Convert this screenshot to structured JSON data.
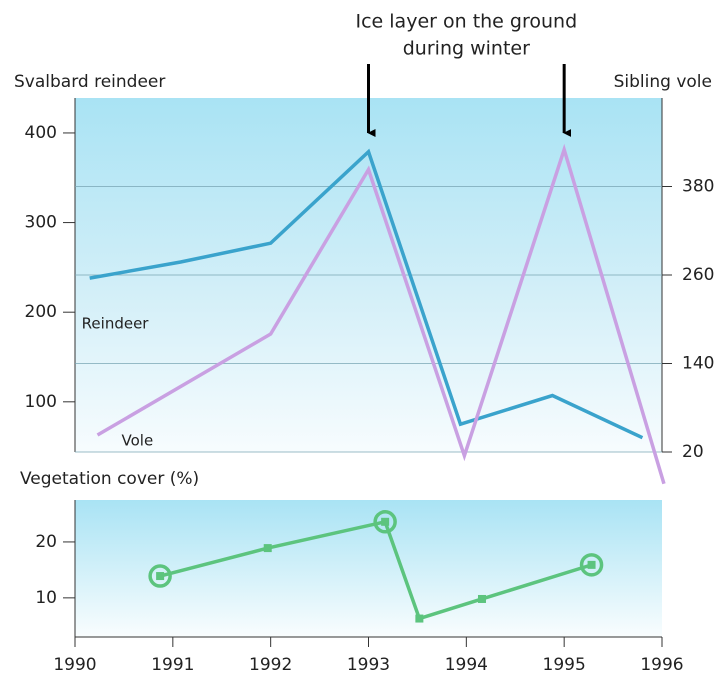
{
  "chart_data": [
    {
      "type": "line",
      "y_label": "Svalbard reindeer",
      "y2_label": "Sibling vole",
      "xlim": [
        1990,
        1996
      ],
      "ylim": [
        44,
        439
      ],
      "yticks": [
        100,
        200,
        300,
        400
      ],
      "y2lim": [
        20,
        500
      ],
      "y2ticks": [
        20,
        140,
        260,
        380
      ],
      "grid": "y2",
      "series": [
        {
          "name": "Reindeer",
          "color": "#3aa3cc",
          "x": [
            1990.15,
            1991.08,
            1992.0,
            1993.0,
            1993.94,
            1994.88,
            1995.8
          ],
          "values": [
            238,
            256,
            277,
            379,
            75,
            107,
            60
          ]
        },
        {
          "name": "Vole",
          "color": "#c9a0e2",
          "axis": "y2",
          "x": [
            1990.23,
            1992.0,
            1993.0,
            1993.98,
            1995.0,
            1996.02
          ],
          "values": [
            43,
            180,
            403,
            15,
            430,
            -23
          ]
        }
      ],
      "annotation": {
        "text_lines": [
          "Ice layer on the ground",
          "during winter"
        ],
        "arrow_x": [
          1993,
          1995
        ]
      }
    },
    {
      "type": "line",
      "title": "Vegetation cover (%)",
      "xlim": [
        1990,
        1996
      ],
      "xticks": [
        1990,
        1991,
        1992,
        1993,
        1994,
        1995,
        1996
      ],
      "ylim": [
        3,
        27.5
      ],
      "yticks": [
        10,
        20
      ],
      "series": [
        {
          "color": "#5cc47e",
          "x": [
            1990.87,
            1991.97,
            1993.17,
            1993.52,
            1994.16,
            1995.28
          ],
          "values": [
            13.9,
            18.9,
            23.6,
            6.3,
            9.8,
            15.9
          ],
          "markers": [
            "circle",
            "square",
            "circle",
            "square",
            "square",
            "circle"
          ]
        }
      ]
    }
  ]
}
